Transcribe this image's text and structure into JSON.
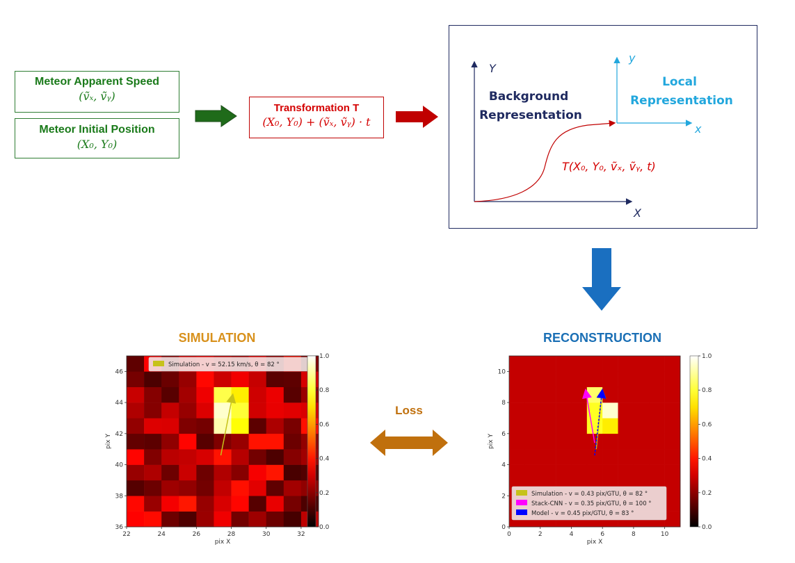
{
  "inputs": {
    "speed": {
      "title": "Meteor Apparent Speed",
      "formula": "(ṽₓ, ṽᵧ)"
    },
    "position": {
      "title": "Meteor Initial Position",
      "formula": "(X₀, Y₀)"
    }
  },
  "transformation": {
    "title": "Transformation T",
    "formula": "(X₀, Y₀) + (ṽₓ, ṽᵧ) · t"
  },
  "frames": {
    "background_label": "Background\nRepresentation",
    "local_label": "Local\nRepresentation",
    "axis_Y": "Y",
    "axis_X": "X",
    "axis_y": "y",
    "axis_x": "x",
    "curve_label": "T(X₀, Y₀, ṽₓ, ṽᵧ, t)"
  },
  "loss_label": "Loss",
  "simulation": {
    "heading": "SIMULATION",
    "xlabel": "pix X",
    "ylabel": "pix Y",
    "xticks": [
      "22",
      "24",
      "26",
      "28",
      "30",
      "32"
    ],
    "yticks": [
      "36",
      "38",
      "40",
      "42",
      "44",
      "46"
    ],
    "legend": [
      "Simulation - v = 52.15 km/s, θ = 82 °"
    ],
    "colorbar_ticks": [
      "1.0",
      "0.8",
      "0.6",
      "0.4",
      "0.2",
      "0.0"
    ]
  },
  "reconstruction": {
    "heading": "RECONSTRUCTION",
    "xlabel": "pix X",
    "ylabel": "pix Y",
    "xticks": [
      "0",
      "2",
      "4",
      "6",
      "8",
      "10"
    ],
    "yticks": [
      "0",
      "2",
      "4",
      "6",
      "8",
      "10"
    ],
    "legend": [
      "Simulation - v = 0.43 pix/GTU, θ = 82 °",
      "Stack-CNN - v = 0.35 pix/GTU, θ = 100 °",
      "Model - v = 0.45 pix/GTU, θ = 83 °"
    ],
    "colorbar_ticks": [
      "1.0",
      "0.8",
      "0.6",
      "0.4",
      "0.2",
      "0.0"
    ]
  },
  "colors": {
    "green": "#1a7a1a",
    "red": "#d40000",
    "navy": "#1f2a60",
    "cyan": "#22a7dd",
    "orange_heading": "#d8911c",
    "blue_heading": "#1a6fb5",
    "loss_arrow": "#c0700d",
    "down_arrow": "#1a6fc0",
    "green_arrow": "#1f6b1a",
    "red_arrow": "#c00000"
  },
  "chart_data": [
    {
      "type": "heatmap",
      "title": "SIMULATION",
      "xlabel": "pix X",
      "ylabel": "pix Y",
      "xlim": [
        22,
        33
      ],
      "ylim": [
        36,
        47
      ],
      "colorbar_range": [
        0,
        1
      ],
      "series": [
        {
          "name": "Simulation - v = 52.15 km/s, θ = 82 °",
          "arrow_tail": [
            27.4,
            40.6
          ],
          "arrow_head": [
            28.1,
            44.6
          ]
        }
      ]
    },
    {
      "type": "heatmap",
      "title": "RECONSTRUCTION",
      "xlabel": "pix X",
      "ylabel": "pix Y",
      "xlim": [
        0,
        11
      ],
      "ylim": [
        0,
        11
      ],
      "colorbar_range": [
        0,
        1
      ],
      "series": [
        {
          "name": "Simulation - v = 0.43 pix/GTU, θ = 82 °",
          "arrow_tail": [
            5.6,
            5.0
          ],
          "arrow_head": [
            6.0,
            8.9
          ]
        },
        {
          "name": "Stack-CNN - v = 0.35 pix/GTU, θ = 100 °",
          "arrow_tail": [
            5.5,
            5.4
          ],
          "arrow_head": [
            4.9,
            8.9
          ]
        },
        {
          "name": "Model - v = 0.45 pix/GTU, θ = 83 °",
          "arrow_tail": [
            5.5,
            4.6
          ],
          "arrow_head": [
            6.0,
            8.9
          ]
        }
      ]
    }
  ]
}
